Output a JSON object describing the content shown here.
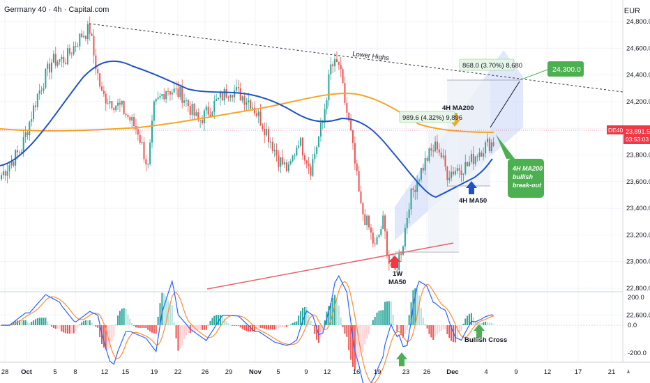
{
  "header": {
    "title": "Germany 40 · 4h · Capital.com",
    "currency": "EUR"
  },
  "price_tag": {
    "symbol": "DE40",
    "price": "23,891.5",
    "countdown": "03:53:03"
  },
  "annotations": {
    "lower_highs": "Lower Highs",
    "ma200_label": "4H MA200",
    "ma50_label": "4H MA50",
    "w1_label_1": "1W",
    "w1_label_2": "MA50",
    "measure_1": "989.6 (4.32%) 9,896",
    "measure_2": "868.0 (3.70%) 8,680",
    "target": "24,300.0",
    "breakout_1": "4H MA200",
    "breakout_2": "bullish",
    "breakout_3": "break-out",
    "bullish_cross": "Bullish Cross"
  },
  "colors": {
    "up_candle": "#26a69a",
    "down_candle": "#ef5350",
    "ma50": "#1e53c7",
    "ma200": "#f5a623",
    "channel": "#c9d6f7",
    "trendline": "#e8616b",
    "green_label": "#4caf50",
    "price_tag": "#f23645"
  },
  "chart_data": {
    "type": "candlestick",
    "title": "Germany 40 · 4h · Capital.com",
    "y_axis": {
      "ticks": [
        "24,800.0",
        "24,600.0",
        "24,400.0",
        "24,200.0",
        "24,000.0",
        "23,800.0",
        "23,600.0",
        "23,400.0",
        "23,200.0",
        "23,000.0",
        "22,800.0",
        "22,600.0"
      ],
      "range": [
        22560,
        24820
      ]
    },
    "x_axis": {
      "ticks": [
        "28",
        "Oct",
        "5",
        "8",
        "12",
        "15",
        "19",
        "22",
        "26",
        "29",
        "Nov",
        "5",
        "9",
        "12",
        "16",
        "19",
        "23",
        "26",
        "Dec",
        "4",
        "9",
        "12",
        "17",
        "21"
      ]
    },
    "macd_axis": {
      "ticks": [
        "200.0",
        "0.0",
        "-200.0"
      ]
    },
    "series": [
      {
        "name": "4H MA50"
      },
      {
        "name": "4H MA200"
      }
    ],
    "key_levels": {
      "current_price": 23891.5,
      "target": 24300.0,
      "low": 22890
    }
  }
}
